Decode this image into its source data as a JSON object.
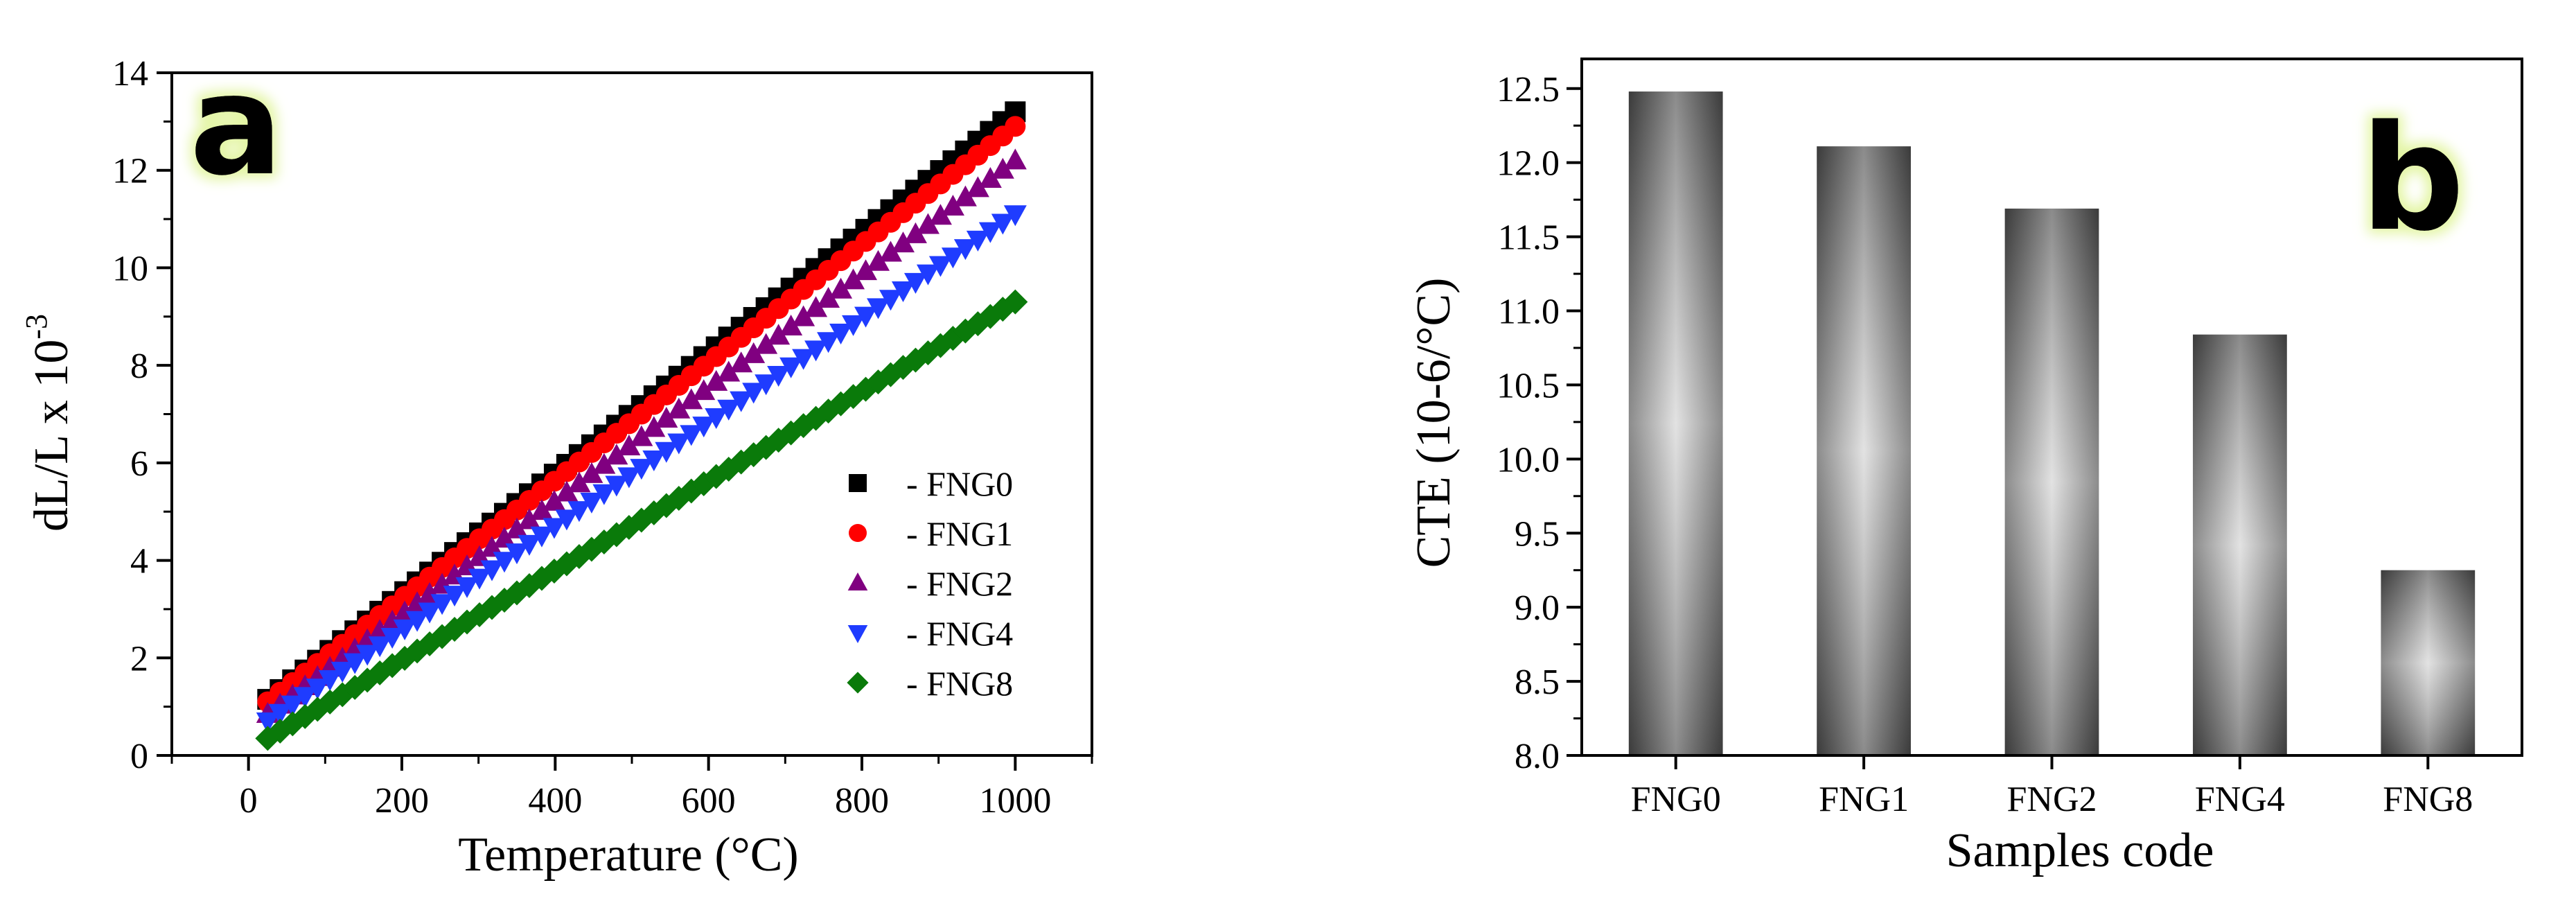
{
  "chart_data": [
    {
      "panel_label": "a",
      "type": "scatter",
      "xlabel": "Temperature (°C)",
      "ylabel_main": "dL/L x 10",
      "ylabel_exp": "-3",
      "xlim": [
        -100,
        1100
      ],
      "ylim": [
        0,
        14
      ],
      "xticks": [
        0,
        200,
        400,
        600,
        800,
        1000
      ],
      "yticks": [
        0,
        2,
        4,
        6,
        8,
        10,
        12,
        14
      ],
      "legend_position": "bottom-right",
      "series": [
        {
          "name": "- FNG0",
          "marker": "square",
          "color": "#000000",
          "x": [
            25,
            1000
          ],
          "y": [
            1.15,
            13.2
          ]
        },
        {
          "name": "- FNG1",
          "marker": "circle",
          "color": "#ff0000",
          "x": [
            25,
            1000
          ],
          "y": [
            1.1,
            12.9
          ]
        },
        {
          "name": "- FNG2",
          "marker": "triangle-up",
          "color": "#800080",
          "x": [
            25,
            1000
          ],
          "y": [
            0.85,
            12.2
          ]
        },
        {
          "name": "- FNG4",
          "marker": "triangle-down",
          "color": "#1f3cff",
          "x": [
            25,
            1000
          ],
          "y": [
            0.7,
            11.1
          ]
        },
        {
          "name": "- FNG8",
          "marker": "diamond",
          "color": "#0a7a0a",
          "x": [
            25,
            1000
          ],
          "y": [
            0.35,
            9.3
          ]
        }
      ]
    },
    {
      "panel_label": "b",
      "type": "bar",
      "xlabel": "Samples code",
      "ylabel": "CTE (10-6/°C)",
      "categories": [
        "FNG0",
        "FNG1",
        "FNG2",
        "FNG4",
        "FNG8"
      ],
      "values": [
        12.48,
        12.11,
        11.69,
        10.84,
        9.25
      ],
      "ylim": [
        8.0,
        12.7
      ],
      "yticks": [
        "8.0",
        "8.5",
        "9.0",
        "9.5",
        "10.0",
        "10.5",
        "11.0",
        "11.5",
        "12.0",
        "12.5"
      ],
      "bar_color": "#6e6e6e"
    }
  ]
}
